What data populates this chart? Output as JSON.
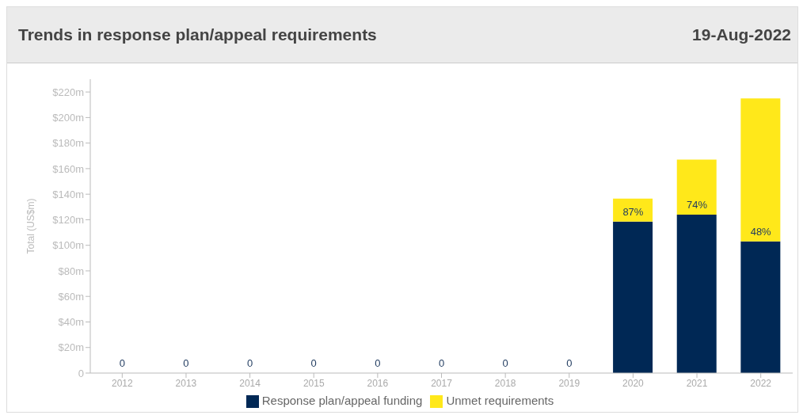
{
  "chart_data": {
    "type": "bar",
    "title": "Trends in response plan/appeal requirements",
    "subtitle": "19-Aug-2022",
    "ylabel": "Total (US$m)",
    "categories": [
      "2012",
      "2013",
      "2014",
      "2015",
      "2016",
      "2017",
      "2018",
      "2019",
      "2020",
      "2021",
      "2022"
    ],
    "stacked": true,
    "series": [
      {
        "name": "Response plan/appeal funding",
        "color": "#002855",
        "values": [
          0,
          0,
          0,
          0,
          0,
          0,
          0,
          0,
          118.5,
          124,
          103
        ],
        "value_labels": [
          "0",
          "0",
          "0",
          "0",
          "0",
          "0",
          "0",
          "0",
          null,
          null,
          null
        ]
      },
      {
        "name": "Unmet requirements",
        "color": "#ffe81a",
        "values": [
          0,
          0,
          0,
          0,
          0,
          0,
          0,
          0,
          18,
          43,
          112
        ]
      }
    ],
    "ylim": [
      0,
      230
    ],
    "yticks": [
      {
        "value": 0,
        "label": "0"
      },
      {
        "value": 20,
        "label": "$20m"
      },
      {
        "value": 40,
        "label": "$40m"
      },
      {
        "value": 60,
        "label": "$60m"
      },
      {
        "value": 80,
        "label": "$80m"
      },
      {
        "value": 100,
        "label": "$100m"
      },
      {
        "value": 120,
        "label": "$120m"
      },
      {
        "value": 140,
        "label": "$140m"
      },
      {
        "value": 160,
        "label": "$160m"
      },
      {
        "value": 180,
        "label": "$180m"
      },
      {
        "value": 200,
        "label": "$200m"
      },
      {
        "value": 220,
        "label": "$220m"
      }
    ],
    "annotations": [
      {
        "text": "87%",
        "x": "2020",
        "y": 118.5
      },
      {
        "text": "74%",
        "x": "2021",
        "y": 124
      },
      {
        "text": "48%",
        "x": "2022",
        "y": 103
      }
    ],
    "grid": false,
    "legend": "bottom"
  }
}
